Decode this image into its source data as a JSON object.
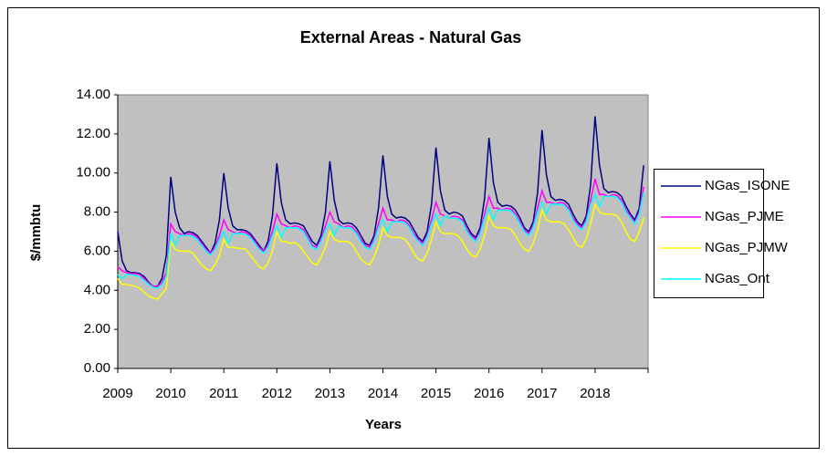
{
  "chart_data": {
    "type": "line",
    "title": "External Areas - Natural Gas",
    "x_label": "Years",
    "y_label": "$/mmbtu",
    "categories": [
      "2009",
      null,
      null,
      null,
      null,
      null,
      null,
      null,
      null,
      null,
      null,
      null,
      "2010",
      null,
      null,
      null,
      null,
      null,
      null,
      null,
      null,
      null,
      null,
      null,
      "2011",
      null,
      null,
      null,
      null,
      null,
      null,
      null,
      null,
      null,
      null,
      null,
      "2012",
      null,
      null,
      null,
      null,
      null,
      null,
      null,
      null,
      null,
      null,
      null,
      "2013",
      null,
      null,
      null,
      null,
      null,
      null,
      null,
      null,
      null,
      null,
      null,
      "2014",
      null,
      null,
      null,
      null,
      null,
      null,
      null,
      null,
      null,
      null,
      null,
      "2015",
      null,
      null,
      null,
      null,
      null,
      null,
      null,
      null,
      null,
      null,
      null,
      "2016",
      null,
      null,
      null,
      null,
      null,
      null,
      null,
      null,
      null,
      null,
      null,
      "2017",
      null,
      null,
      null,
      null,
      null,
      null,
      null,
      null,
      null,
      null,
      null,
      "2018",
      null,
      null,
      null,
      null,
      null,
      null,
      null,
      null,
      null,
      null,
      null
    ],
    "series": [
      {
        "name": "NGas_ISONE",
        "color": "#000080",
        "values": [
          7.0,
          5.5,
          5.0,
          4.9,
          4.9,
          4.85,
          4.7,
          4.4,
          4.2,
          4.2,
          4.6,
          5.8,
          9.8,
          8.0,
          7.2,
          6.9,
          7.0,
          6.95,
          6.8,
          6.5,
          6.2,
          5.9,
          6.4,
          7.6,
          10.0,
          8.2,
          7.3,
          7.1,
          7.1,
          7.05,
          6.9,
          6.6,
          6.3,
          6.0,
          6.5,
          7.8,
          10.5,
          8.5,
          7.6,
          7.4,
          7.45,
          7.4,
          7.3,
          6.9,
          6.5,
          6.3,
          6.8,
          8.0,
          10.6,
          8.6,
          7.6,
          7.4,
          7.45,
          7.4,
          7.2,
          6.8,
          6.4,
          6.3,
          6.8,
          8.2,
          10.9,
          8.8,
          7.9,
          7.7,
          7.75,
          7.7,
          7.5,
          7.1,
          6.7,
          6.5,
          7.0,
          8.4,
          11.3,
          9.1,
          8.1,
          7.9,
          8.0,
          7.95,
          7.8,
          7.3,
          6.9,
          6.7,
          7.2,
          8.7,
          11.8,
          9.5,
          8.5,
          8.3,
          8.35,
          8.3,
          8.1,
          7.7,
          7.2,
          7.0,
          7.5,
          9.0,
          12.2,
          9.9,
          8.8,
          8.6,
          8.65,
          8.6,
          8.4,
          7.9,
          7.5,
          7.3,
          7.8,
          9.4,
          12.9,
          10.4,
          9.2,
          9.0,
          9.05,
          9.0,
          8.8,
          8.3,
          7.9,
          7.6,
          8.2,
          10.4
        ]
      },
      {
        "name": "NGas_PJME",
        "color": "#FF00FF",
        "values": [
          5.2,
          5.0,
          4.9,
          4.85,
          4.85,
          4.8,
          4.6,
          4.35,
          4.2,
          4.2,
          4.4,
          4.9,
          7.4,
          7.0,
          6.9,
          6.8,
          6.9,
          6.85,
          6.7,
          6.4,
          6.1,
          5.9,
          6.2,
          6.8,
          7.6,
          7.1,
          7.0,
          6.9,
          7.0,
          6.95,
          6.8,
          6.5,
          6.2,
          6.0,
          6.3,
          7.0,
          7.9,
          7.4,
          7.3,
          7.2,
          7.3,
          7.25,
          7.1,
          6.7,
          6.3,
          6.2,
          6.6,
          7.3,
          8.0,
          7.5,
          7.4,
          7.2,
          7.3,
          7.25,
          7.0,
          6.6,
          6.3,
          6.2,
          6.6,
          7.4,
          8.2,
          7.6,
          7.6,
          7.5,
          7.6,
          7.55,
          7.3,
          6.9,
          6.6,
          6.4,
          6.8,
          7.6,
          8.5,
          7.9,
          7.8,
          7.7,
          7.8,
          7.75,
          7.6,
          7.1,
          6.8,
          6.6,
          7.0,
          7.9,
          8.8,
          8.2,
          8.2,
          8.1,
          8.2,
          8.15,
          7.9,
          7.5,
          7.1,
          6.9,
          7.3,
          8.2,
          9.1,
          8.5,
          8.5,
          8.4,
          8.5,
          8.45,
          8.2,
          7.7,
          7.4,
          7.2,
          7.6,
          8.6,
          9.7,
          8.9,
          8.9,
          8.8,
          8.9,
          8.85,
          8.6,
          8.1,
          7.8,
          7.5,
          8.0,
          9.3
        ]
      },
      {
        "name": "NGas_PJMW",
        "color": "#FFFF00",
        "values": [
          4.6,
          4.3,
          4.3,
          4.25,
          4.2,
          4.1,
          3.9,
          3.7,
          3.6,
          3.55,
          3.8,
          4.1,
          6.5,
          6.1,
          6.0,
          6.0,
          6.0,
          5.9,
          5.6,
          5.3,
          5.1,
          5.0,
          5.3,
          5.8,
          6.6,
          6.2,
          6.2,
          6.15,
          6.15,
          6.1,
          5.8,
          5.5,
          5.2,
          5.1,
          5.4,
          6.0,
          7.0,
          6.5,
          6.5,
          6.4,
          6.45,
          6.3,
          6.0,
          5.7,
          5.4,
          5.3,
          5.7,
          6.2,
          7.0,
          6.6,
          6.5,
          6.5,
          6.5,
          6.35,
          6.0,
          5.6,
          5.4,
          5.3,
          5.7,
          6.3,
          7.2,
          6.8,
          6.7,
          6.7,
          6.7,
          6.6,
          6.3,
          5.9,
          5.6,
          5.5,
          5.9,
          6.6,
          7.5,
          7.0,
          6.9,
          6.9,
          6.9,
          6.8,
          6.5,
          6.1,
          5.8,
          5.7,
          6.1,
          6.8,
          7.8,
          7.3,
          7.2,
          7.2,
          7.2,
          7.1,
          6.8,
          6.4,
          6.1,
          6.0,
          6.4,
          7.1,
          8.1,
          7.6,
          7.5,
          7.5,
          7.5,
          7.4,
          7.1,
          6.7,
          6.3,
          6.2,
          6.6,
          7.4,
          8.4,
          8.0,
          7.9,
          7.9,
          7.9,
          7.8,
          7.5,
          7.0,
          6.6,
          6.5,
          7.0,
          7.7
        ]
      },
      {
        "name": "NGas_Ont",
        "color": "#00FFFF",
        "values": [
          4.8,
          4.6,
          4.8,
          4.8,
          4.75,
          4.7,
          4.5,
          4.3,
          4.15,
          4.1,
          4.3,
          4.7,
          6.9,
          6.3,
          6.8,
          6.8,
          6.8,
          6.75,
          6.6,
          6.3,
          6.0,
          5.8,
          6.1,
          6.6,
          7.0,
          6.4,
          6.9,
          6.9,
          6.9,
          6.85,
          6.7,
          6.4,
          6.1,
          5.9,
          6.2,
          6.8,
          7.3,
          6.7,
          7.2,
          7.2,
          7.2,
          7.15,
          7.0,
          6.6,
          6.2,
          6.1,
          6.5,
          7.1,
          7.4,
          6.8,
          7.3,
          7.2,
          7.2,
          7.15,
          6.9,
          6.5,
          6.2,
          6.1,
          6.5,
          7.2,
          7.6,
          7.0,
          7.5,
          7.5,
          7.5,
          7.45,
          7.2,
          6.8,
          6.5,
          6.3,
          6.7,
          7.4,
          7.9,
          7.3,
          7.8,
          7.7,
          7.7,
          7.65,
          7.5,
          7.0,
          6.7,
          6.5,
          6.9,
          7.7,
          8.2,
          7.6,
          8.1,
          8.1,
          8.1,
          8.05,
          7.8,
          7.4,
          7.0,
          6.8,
          7.2,
          8.0,
          8.5,
          7.9,
          8.4,
          8.4,
          8.4,
          8.35,
          8.1,
          7.6,
          7.3,
          7.1,
          7.5,
          8.4,
          8.9,
          8.3,
          8.8,
          8.8,
          8.8,
          8.75,
          8.5,
          8.0,
          7.7,
          7.4,
          7.9,
          9.0
        ]
      }
    ],
    "ylim": [
      0,
      14
    ],
    "yticks": [
      {
        "value": 0,
        "label": "0.00"
      },
      {
        "value": 2,
        "label": "2.00"
      },
      {
        "value": 4,
        "label": "4.00"
      },
      {
        "value": 6,
        "label": "6.00"
      },
      {
        "value": 8,
        "label": "8.00"
      },
      {
        "value": 10,
        "label": "10.00"
      },
      {
        "value": 12,
        "label": "12.00"
      },
      {
        "value": 14,
        "label": "14.00"
      }
    ],
    "grid": false,
    "legend": "right",
    "plot_background": "#C0C0C0"
  }
}
